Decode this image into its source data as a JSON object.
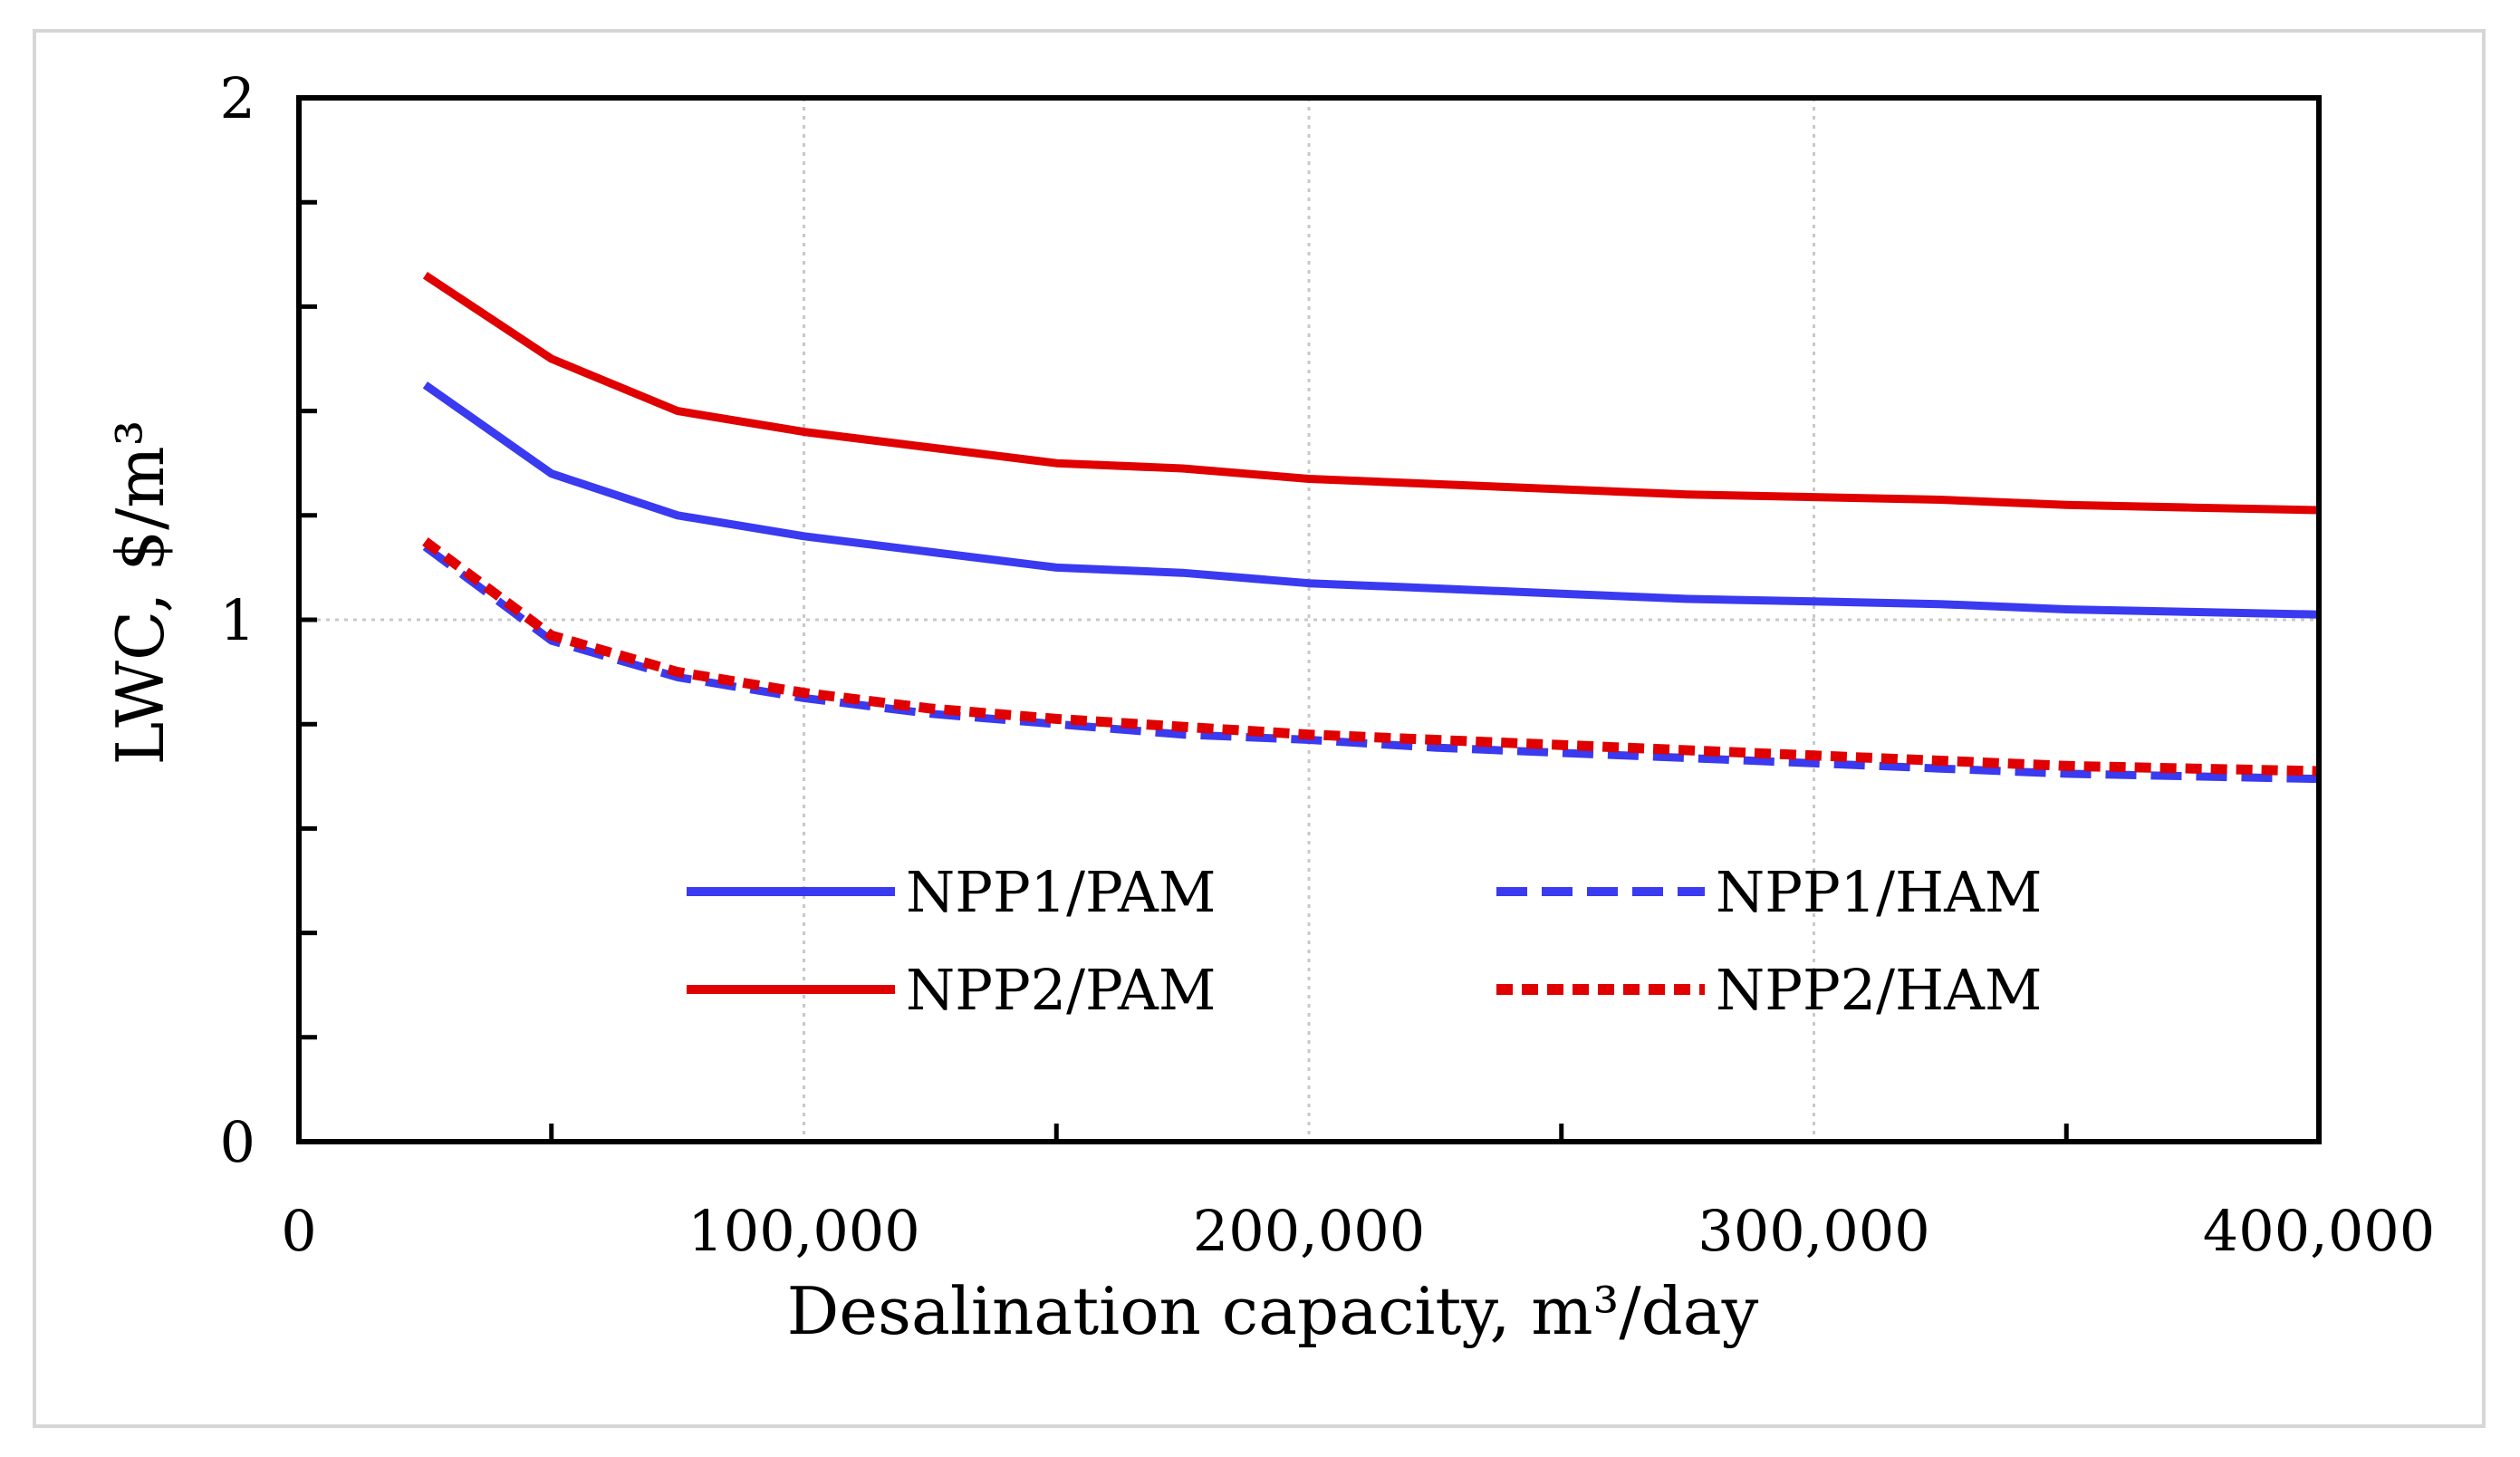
{
  "chart_data": {
    "type": "line",
    "title": "",
    "xlabel": "Desalination capacity, m³/day",
    "ylabel": "LWC, $/m³",
    "xlim": [
      0,
      400000
    ],
    "ylim": [
      0,
      2
    ],
    "x_ticks": [
      0,
      100000,
      200000,
      300000,
      400000
    ],
    "x_tick_labels": [
      "0",
      "100,000",
      "200,000",
      "300,000",
      "400,000"
    ],
    "x_minor_ticks": [
      50000,
      150000,
      250000,
      350000
    ],
    "y_ticks": [
      0,
      1,
      2
    ],
    "y_tick_labels": [
      "0",
      "1",
      "2"
    ],
    "y_minor_ticks": [
      0.2,
      0.4,
      0.6,
      0.8,
      1.2,
      1.4,
      1.6,
      1.8
    ],
    "grid": "dotted at major x ticks and y = 1",
    "legend_position": "lower-center",
    "x": [
      25000,
      50000,
      75000,
      100000,
      125000,
      150000,
      175000,
      200000,
      225000,
      250000,
      275000,
      300000,
      325000,
      350000,
      375000,
      400000
    ],
    "series": [
      {
        "name": "NPP1/PAM",
        "color": "#3a3af0",
        "style": "solid",
        "values": [
          1.45,
          1.28,
          1.2,
          1.16,
          1.13,
          1.1,
          1.09,
          1.07,
          1.06,
          1.05,
          1.04,
          1.035,
          1.03,
          1.02,
          1.015,
          1.01
        ]
      },
      {
        "name": "NPP2/PAM",
        "color": "#e00000",
        "style": "solid",
        "values": [
          1.66,
          1.5,
          1.4,
          1.36,
          1.33,
          1.3,
          1.29,
          1.27,
          1.26,
          1.25,
          1.24,
          1.235,
          1.23,
          1.22,
          1.215,
          1.21
        ]
      },
      {
        "name": "NPP1/HAM",
        "color": "#3a3af0",
        "style": "dashed",
        "values": [
          1.14,
          0.96,
          0.89,
          0.85,
          0.82,
          0.8,
          0.78,
          0.77,
          0.755,
          0.745,
          0.735,
          0.725,
          0.715,
          0.705,
          0.7,
          0.695
        ]
      },
      {
        "name": "NPP2/HAM",
        "color": "#e00000",
        "style": "dotted",
        "values": [
          1.15,
          0.97,
          0.9,
          0.86,
          0.83,
          0.81,
          0.795,
          0.78,
          0.77,
          0.76,
          0.75,
          0.74,
          0.73,
          0.72,
          0.715,
          0.71
        ]
      }
    ]
  }
}
